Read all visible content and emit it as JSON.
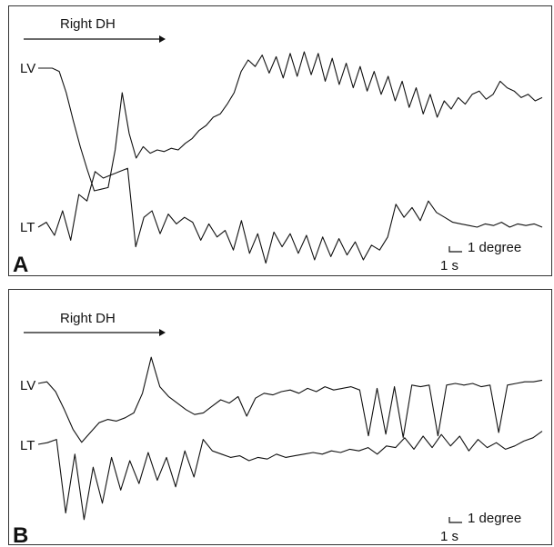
{
  "chart_data": [
    {
      "type": "line",
      "panel_label": "A",
      "stimulus_label": "Right DH",
      "scale_bar": {
        "amplitude_label": "1 degree",
        "time_label": "1 s"
      },
      "series": [
        {
          "name": "LV",
          "values": [
            0,
            0,
            0,
            -0.2,
            -1.5,
            -3.2,
            -4.8,
            -6.2,
            -7.5,
            -7.4,
            -7.3,
            -5.0,
            -1.5,
            -4.0,
            -5.5,
            -4.8,
            -5.2,
            -5.0,
            -5.1,
            -4.9,
            -5.0,
            -4.6,
            -4.3,
            -3.8,
            -3.5,
            -3.0,
            -2.8,
            -2.2,
            -1.5,
            -0.2,
            0.5,
            0.1,
            0.8,
            -0.3,
            0.7,
            -0.6,
            0.9,
            -0.5,
            1.0,
            -0.4,
            0.9,
            -0.8,
            0.6,
            -1.0,
            0.3,
            -1.2,
            0.1,
            -1.4,
            -0.2,
            -1.6,
            -0.5,
            -2.0,
            -0.8,
            -2.4,
            -1.2,
            -2.8,
            -1.6,
            -3.0,
            -2.0,
            -2.5,
            -1.8,
            -2.2,
            -1.6,
            -1.4,
            -1.9,
            -1.6,
            -0.8,
            -1.2,
            -1.4,
            -1.8,
            -1.6,
            -2.0,
            -1.8
          ]
        },
        {
          "name": "LT",
          "values": [
            0,
            0.3,
            -0.5,
            1.0,
            -0.8,
            2.0,
            1.6,
            3.4,
            3.0,
            3.2,
            3.4,
            3.6,
            -1.2,
            0.6,
            1.0,
            -0.4,
            0.8,
            0.2,
            0.6,
            0.3,
            -0.8,
            0.2,
            -0.6,
            -0.2,
            -1.4,
            0.4,
            -1.6,
            -0.4,
            -2.2,
            -0.3,
            -1.2,
            -0.4,
            -1.6,
            -0.5,
            -2.0,
            -0.6,
            -1.8,
            -0.7,
            -1.7,
            -0.9,
            -2.0,
            -1.1,
            -1.4,
            -0.6,
            1.4,
            0.6,
            1.2,
            0.4,
            1.6,
            0.9,
            0.6,
            0.3,
            0.2,
            0.1,
            0,
            0.2,
            0.1,
            0.3,
            0,
            0.2,
            0.1,
            0.2,
            0
          ]
        }
      ]
    },
    {
      "type": "line",
      "panel_label": "B",
      "stimulus_label": "Right DH",
      "scale_bar": {
        "amplitude_label": "1 degree",
        "time_label": "1 s"
      },
      "series": [
        {
          "name": "LV",
          "values": [
            0,
            0.1,
            -0.5,
            -1.6,
            -2.8,
            -3.6,
            -3.0,
            -2.4,
            -2.2,
            -2.3,
            -2.1,
            -1.8,
            -0.6,
            1.6,
            -0.2,
            -0.8,
            -1.2,
            -1.6,
            -1.9,
            -1.8,
            -1.4,
            -1.0,
            -1.2,
            -0.8,
            -2.0,
            -0.9,
            -0.6,
            -0.7,
            -0.5,
            -0.4,
            -0.6,
            -0.3,
            -0.5,
            -0.2,
            -0.4,
            -0.3,
            -0.2,
            -0.4,
            -3.2,
            -0.3,
            -3.1,
            -0.2,
            -3.3,
            -0.1,
            -0.2,
            -0.1,
            -3.2,
            -0.1,
            0,
            -0.1,
            0,
            -0.2,
            -0.1,
            -3.0,
            -0.1,
            0,
            0.1,
            0.1,
            0.2
          ]
        },
        {
          "name": "LT",
          "values": [
            0,
            0.1,
            0.3,
            -4.2,
            -0.6,
            -4.6,
            -1.4,
            -3.6,
            -0.8,
            -2.8,
            -1.0,
            -2.4,
            -0.5,
            -2.2,
            -0.8,
            -2.6,
            -0.4,
            -2.0,
            0.3,
            -0.4,
            -0.6,
            -0.8,
            -0.7,
            -1.0,
            -0.8,
            -0.9,
            -0.6,
            -0.8,
            -0.7,
            -0.6,
            -0.5,
            -0.6,
            -0.4,
            -0.5,
            -0.3,
            -0.4,
            -0.2,
            -0.6,
            -0.1,
            -0.2,
            0.4,
            -0.3,
            0.5,
            -0.2,
            0.6,
            -0.1,
            0.5,
            -0.4,
            0.3,
            -0.2,
            0.1,
            -0.3,
            -0.1,
            0.2,
            0.4,
            0.8
          ]
        }
      ]
    }
  ]
}
